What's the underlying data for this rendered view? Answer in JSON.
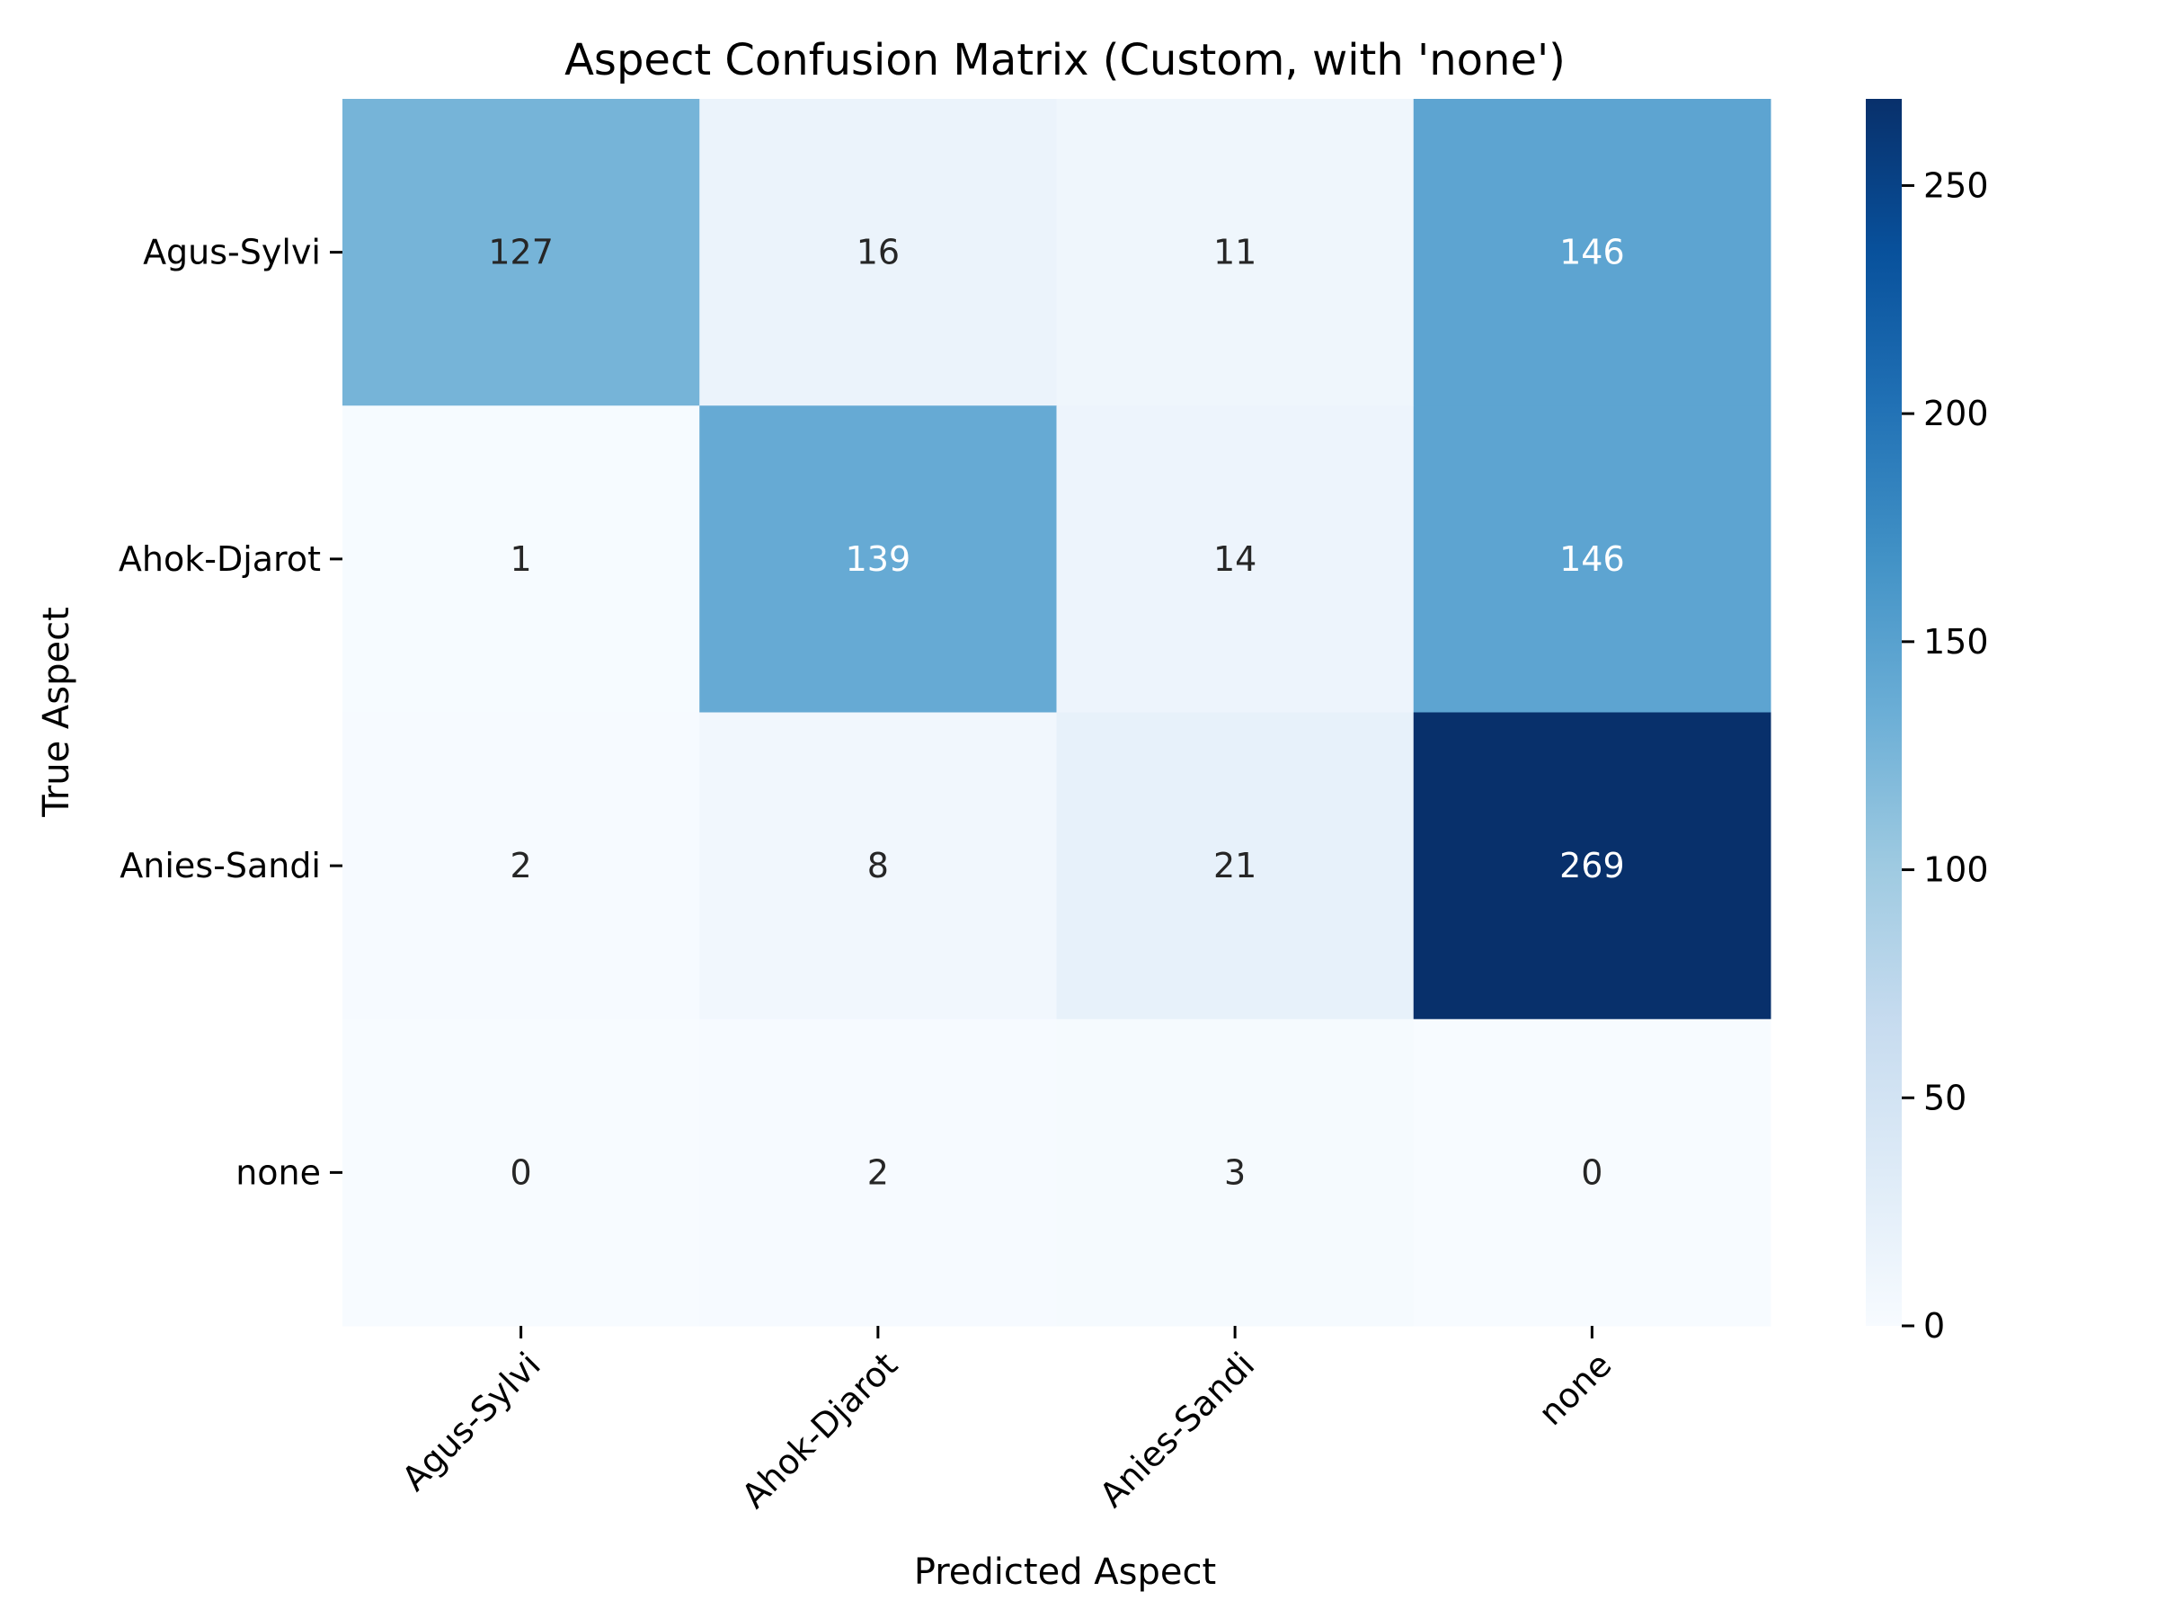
{
  "chart_data": {
    "type": "heatmap",
    "title": "Aspect Confusion Matrix (Custom, with 'none')",
    "xlabel": "Predicted Aspect",
    "ylabel": "True Aspect",
    "x_categories": [
      "Agus-Sylvi",
      "Ahok-Djarot",
      "Anies-Sandi",
      "none"
    ],
    "y_categories": [
      "Agus-Sylvi",
      "Ahok-Djarot",
      "Anies-Sandi",
      "none"
    ],
    "matrix": [
      [
        127,
        16,
        11,
        146
      ],
      [
        1,
        139,
        14,
        146
      ],
      [
        2,
        8,
        21,
        269
      ],
      [
        0,
        2,
        3,
        0
      ]
    ],
    "colormap": "Blues",
    "value_range": [
      0,
      269
    ],
    "colorbar_ticks": [
      0,
      50,
      100,
      150,
      200,
      250
    ],
    "colorbar_ticks_text": [
      "0",
      "50",
      "100",
      "150",
      "200",
      "250"
    ],
    "annotation_colors": {
      "dark": "#262626",
      "light": "#ffffff"
    }
  }
}
